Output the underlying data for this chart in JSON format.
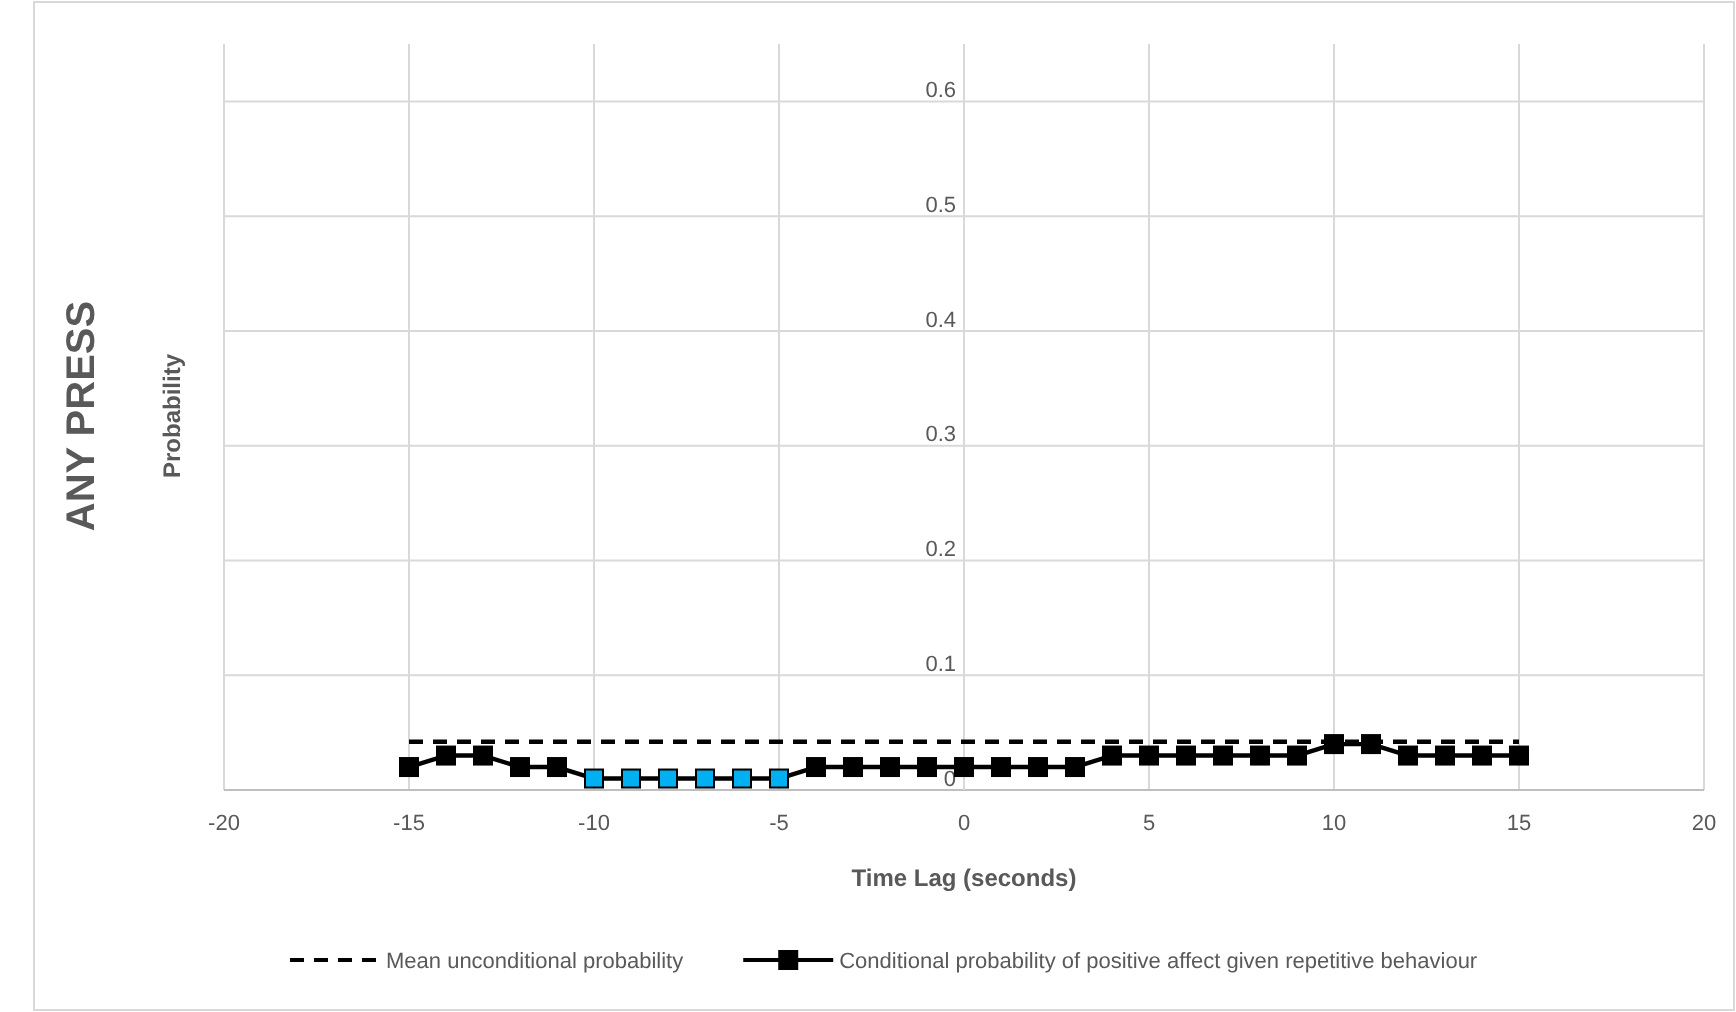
{
  "chart_data": {
    "type": "line",
    "title": "ANY PRESS",
    "xlabel": "Time Lag (seconds)",
    "ylabel": "Probability",
    "xlim": [
      -20,
      20
    ],
    "xticks": [
      -20,
      -15,
      -10,
      -5,
      0,
      5,
      10,
      15,
      20
    ],
    "ylim": [
      0,
      0.65
    ],
    "yticks": [
      0,
      0.1,
      0.2,
      0.3,
      0.4,
      0.5,
      0.6
    ],
    "grid": true,
    "legend": "bottom",
    "series": [
      {
        "name": "Mean unconditional probability",
        "color": "#000000",
        "line_style": "dashed",
        "marker": "none",
        "x": [
          -15,
          15
        ],
        "values": [
          0.042,
          0.042
        ]
      },
      {
        "name": "Conditional probability of positive affect given repetitive behaviour",
        "color": "#000000",
        "line_style": "solid",
        "marker": "square",
        "x": [
          -15,
          -14,
          -13,
          -12,
          -11,
          -10,
          -9,
          -8,
          -7,
          -6,
          -5,
          -4,
          -3,
          -2,
          -1,
          0,
          1,
          2,
          3,
          4,
          5,
          6,
          7,
          8,
          9,
          10,
          11,
          12,
          13,
          14,
          15
        ],
        "values": [
          0.02,
          0.03,
          0.03,
          0.02,
          0.02,
          0.01,
          0.01,
          0.01,
          0.01,
          0.01,
          0.01,
          0.02,
          0.02,
          0.02,
          0.02,
          0.02,
          0.02,
          0.02,
          0.02,
          0.03,
          0.03,
          0.03,
          0.03,
          0.03,
          0.03,
          0.04,
          0.04,
          0.03,
          0.03,
          0.03,
          0.03
        ],
        "colors": [
          "#000000",
          "#000000",
          "#000000",
          "#000000",
          "#000000",
          "#00b0f0",
          "#00b0f0",
          "#00b0f0",
          "#00b0f0",
          "#00b0f0",
          "#00b0f0",
          "#000000",
          "#000000",
          "#000000",
          "#000000",
          "#000000",
          "#000000",
          "#000000",
          "#000000",
          "#000000",
          "#000000",
          "#000000",
          "#000000",
          "#000000",
          "#000000",
          "#000000",
          "#000000",
          "#000000",
          "#000000",
          "#000000",
          "#000000"
        ]
      }
    ]
  }
}
